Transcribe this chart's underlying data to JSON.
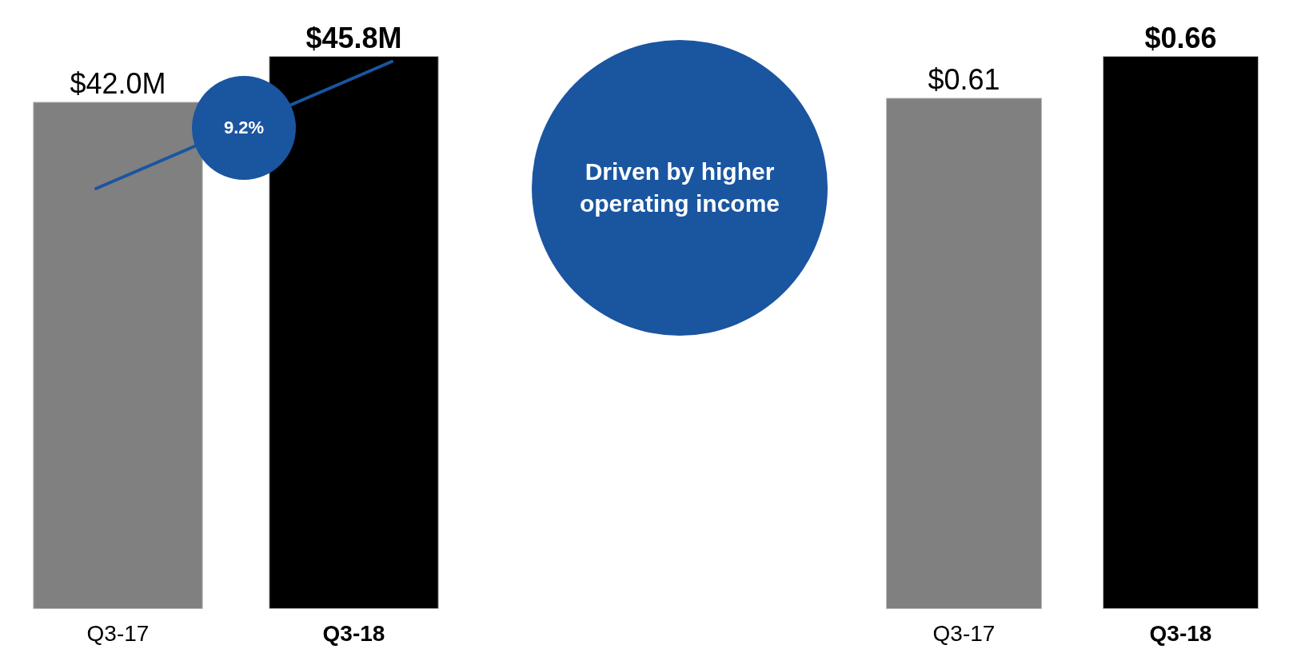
{
  "chart_data": [
    {
      "type": "bar",
      "categories": [
        "Q3-17",
        "Q3-18"
      ],
      "values": [
        42.0,
        45.8
      ],
      "colors": [
        "#808080",
        "#000000"
      ],
      "value_labels": [
        "$42.0M",
        "$45.8M"
      ],
      "annotations": [
        "9.2%"
      ],
      "tick_labels": "x"
    },
    {
      "type": "bar",
      "categories": [
        "Q3-17",
        "Q3-18"
      ],
      "values": [
        0.61,
        0.66
      ],
      "colors": [
        "#808080",
        "#000000"
      ],
      "value_labels": [
        "$0.61",
        "$0.66"
      ],
      "annotations": [
        "Driven by higher operating income"
      ],
      "tick_labels": "x"
    }
  ]
}
